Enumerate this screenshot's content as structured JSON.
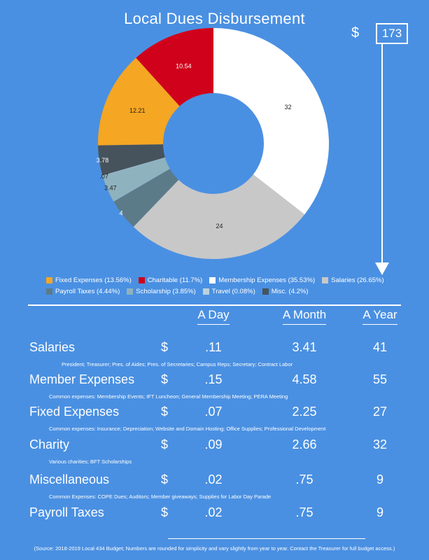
{
  "title": "Local Dues Disbursement",
  "total": {
    "currency": "$",
    "value": "173"
  },
  "chart_data": {
    "type": "pie",
    "title": "Local Dues Disbursement",
    "variant": "donut",
    "slices": [
      {
        "name": "Membership Expenses",
        "value": 32,
        "label": "32",
        "color": "#ffffff",
        "label_color": "#222222"
      },
      {
        "name": "Salaries",
        "value": 24,
        "label": "24",
        "color": "#c8c8c8",
        "label_color": "#222222"
      },
      {
        "name": "Payroll Taxes",
        "value": 4,
        "label": "4",
        "color": "#5b7b89",
        "label_color": "#ffffff"
      },
      {
        "name": "Scholarship",
        "value": 3.47,
        "label": "3.47",
        "color": "#8fb2bf",
        "label_color": "#222222"
      },
      {
        "name": "Travel",
        "value": 0.07,
        "label": ".07",
        "color": "#bcd2da",
        "label_color": "#222222"
      },
      {
        "name": "Misc.",
        "value": 3.78,
        "label": "3.78",
        "color": "#46535c",
        "label_color": "#ffffff"
      },
      {
        "name": "Fixed Expenses",
        "value": 12.21,
        "label": "12.21",
        "color": "#f5a623",
        "label_color": "#222222"
      },
      {
        "name": "Charitable",
        "value": 10.54,
        "label": "10.54",
        "color": "#d0021b",
        "label_color": "#ffffff"
      }
    ],
    "legend": [
      [
        "Fixed Expenses (13.56%)",
        "Charitable (11.7%)",
        "Membership Expenses (35.53%)",
        "Salaries (26.65%)"
      ],
      [
        "Payroll Taxes (4.44%)",
        "Scholarship (3.85%)",
        "Travel (0.08%)",
        "Misc. (4.2%)"
      ]
    ],
    "legend_colors": [
      [
        "#f5a623",
        "#d0021b",
        "#ffffff",
        "#c8c8c8"
      ],
      [
        "#5b7b89",
        "#8fb2bf",
        "#bcd2da",
        "#46535c"
      ]
    ]
  },
  "table": {
    "headers": [
      "A Day",
      "A Month",
      "A Year"
    ],
    "currency": "$",
    "rows": [
      {
        "label": "Salaries",
        "day": ".11",
        "month": "3.41",
        "year": "41",
        "note": "President; Treasurer; Pres. of Aides; Pres. of Secretaries; Campus Reps; Secretary; Contract Labor"
      },
      {
        "label": "Member  Expenses",
        "day": ".15",
        "month": "4.58",
        "year": "55",
        "note": "Common expenses: Membership Events; IFT Luncheon; General Membership Meeting; PERA Meeting"
      },
      {
        "label": "Fixed Expenses",
        "day": ".07",
        "month": "2.25",
        "year": "27",
        "note": "Common expenses:  Insurance; Depreciation; Website and Domain Hosting; Office  Supplies; Professional Development"
      },
      {
        "label": "Charity",
        "day": ".09",
        "month": "2.66",
        "year": "32",
        "note": "Various charities;  BFT Scholarships"
      },
      {
        "label": "Miscellaneous",
        "day": ".02",
        "month": ".75",
        "year": "9",
        "note": "Common Expenses: COPE Dues; Auditors; Member giveaways; Supplies for Labor Day Parade"
      },
      {
        "label": "Payroll Taxes",
        "day": ".02",
        "month": ".75",
        "year": "9",
        "note": ""
      }
    ]
  },
  "source": "(Source: 2018-2019  Local 434 Budget; Numbers are rounded for simplicity and vary slightly from year to year. Contact the Treasurer for full budget access.)"
}
